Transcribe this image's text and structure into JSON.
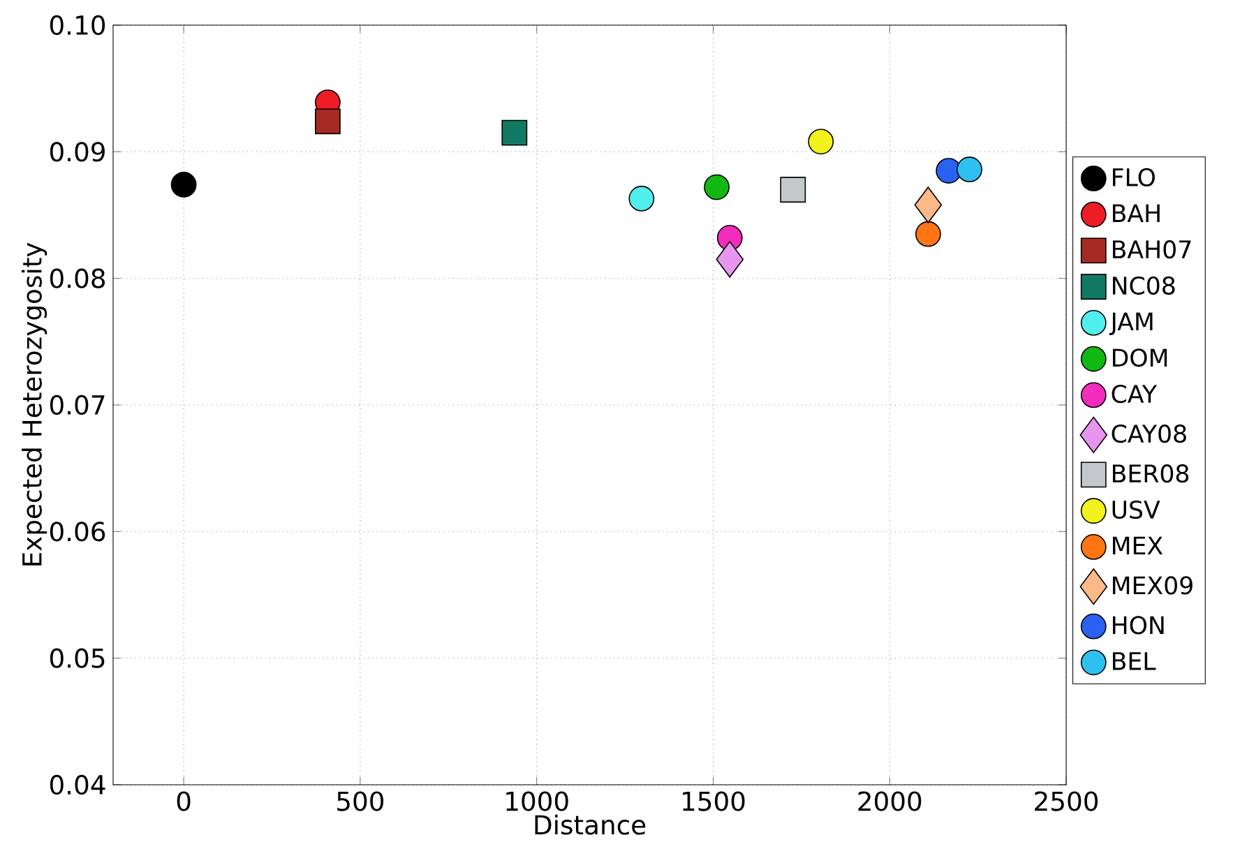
{
  "chart_data": {
    "type": "scatter",
    "xlabel": "Distance",
    "ylabel": "Expected Heterozygosity",
    "xlim": [
      -200,
      2500
    ],
    "ylim": [
      0.04,
      0.1
    ],
    "xticks": [
      0,
      500,
      1000,
      1500,
      2000,
      2500
    ],
    "yticks": [
      0.04,
      0.05,
      0.06,
      0.07,
      0.08,
      0.09,
      {
        "value": 0.1,
        "label": "0.10"
      }
    ],
    "grid": true,
    "legend": "right",
    "series": [
      {
        "name": "FLO",
        "color": "#000000",
        "marker": "circle",
        "x": [
          0
        ],
        "values": [
          0.0874
        ]
      },
      {
        "name": "BAH",
        "color": "#ee1c25",
        "marker": "circle",
        "x": [
          408
        ],
        "values": [
          0.0939
        ]
      },
      {
        "name": "BAH07",
        "color": "#a52a22",
        "marker": "square",
        "x": [
          408
        ],
        "values": [
          0.0924
        ]
      },
      {
        "name": "NC08",
        "color": "#127a64",
        "marker": "square",
        "x": [
          937
        ],
        "values": [
          0.0915
        ]
      },
      {
        "name": "JAM",
        "color": "#52eeee",
        "marker": "circle",
        "x": [
          1297
        ],
        "values": [
          0.0863
        ]
      },
      {
        "name": "DOM",
        "color": "#12b812",
        "marker": "circle",
        "x": [
          1510
        ],
        "values": [
          0.0872
        ]
      },
      {
        "name": "CAY",
        "color": "#f22cbc",
        "marker": "circle",
        "x": [
          1547
        ],
        "values": [
          0.0832
        ]
      },
      {
        "name": "CAY08",
        "color": "#e895f0",
        "marker": "diamond",
        "x": [
          1547
        ],
        "values": [
          0.0815
        ]
      },
      {
        "name": "BER08",
        "color": "#c3c9cb",
        "marker": "square",
        "x": [
          1726
        ],
        "values": [
          0.087
        ]
      },
      {
        "name": "USV",
        "color": "#f2f21c",
        "marker": "circle",
        "x": [
          1805
        ],
        "values": [
          0.0908
        ]
      },
      {
        "name": "MEX",
        "color": "#ff7514",
        "marker": "circle",
        "x": [
          2109
        ],
        "values": [
          0.0835
        ]
      },
      {
        "name": "MEX09",
        "color": "#ffb887",
        "marker": "diamond",
        "x": [
          2109
        ],
        "values": [
          0.0858
        ]
      },
      {
        "name": "HON",
        "color": "#2962f2",
        "marker": "circle",
        "x": [
          2167
        ],
        "values": [
          0.0885
        ]
      },
      {
        "name": "BEL",
        "color": "#2ec0f0",
        "marker": "circle",
        "x": [
          2226
        ],
        "values": [
          0.0886
        ]
      }
    ]
  }
}
